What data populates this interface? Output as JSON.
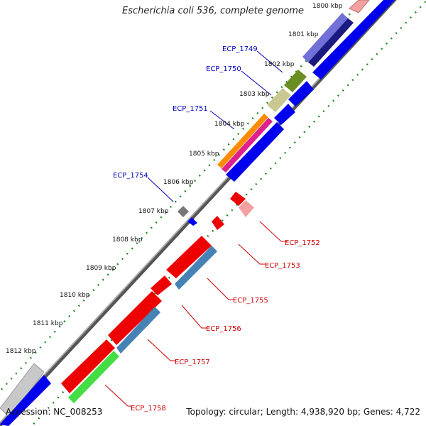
{
  "title": "Escherichia coli 536, complete genome",
  "accession_text": "Accession: NC_008253",
  "footer_text": "Topology: circular; Length: 4,938,920 bp; Genes: 4,722",
  "colors": {
    "forward_gene": "#0000ee",
    "reverse_gene": "#ee0000",
    "forward_label": "#0000bb",
    "reverse_label": "#cc0000",
    "tick_green": "#2a8a2a",
    "backbone": "#888888"
  },
  "tick_labels": [
    "1800 kbp",
    "1801 kbp",
    "1802 kbp",
    "1803 kbp",
    "1804 kbp",
    "1805 kbp",
    "1806 kbp",
    "1807 kbp",
    "1808 kbp",
    "1809 kbp",
    "1810 kbp",
    "1811 kbp",
    "1812 kbp"
  ],
  "gene_labels": [
    {
      "id": "ECP_1749",
      "side": "forward"
    },
    {
      "id": "ECP_1750",
      "side": "forward"
    },
    {
      "id": "ECP_1751",
      "side": "forward"
    },
    {
      "id": "ECP_1754",
      "side": "forward"
    },
    {
      "id": "ECP_1752",
      "side": "reverse"
    },
    {
      "id": "ECP_1753",
      "side": "reverse"
    },
    {
      "id": "ECP_1755",
      "side": "reverse"
    },
    {
      "id": "ECP_1756",
      "side": "reverse"
    },
    {
      "id": "ECP_1757",
      "side": "reverse"
    },
    {
      "id": "ECP_1758",
      "side": "reverse"
    }
  ]
}
